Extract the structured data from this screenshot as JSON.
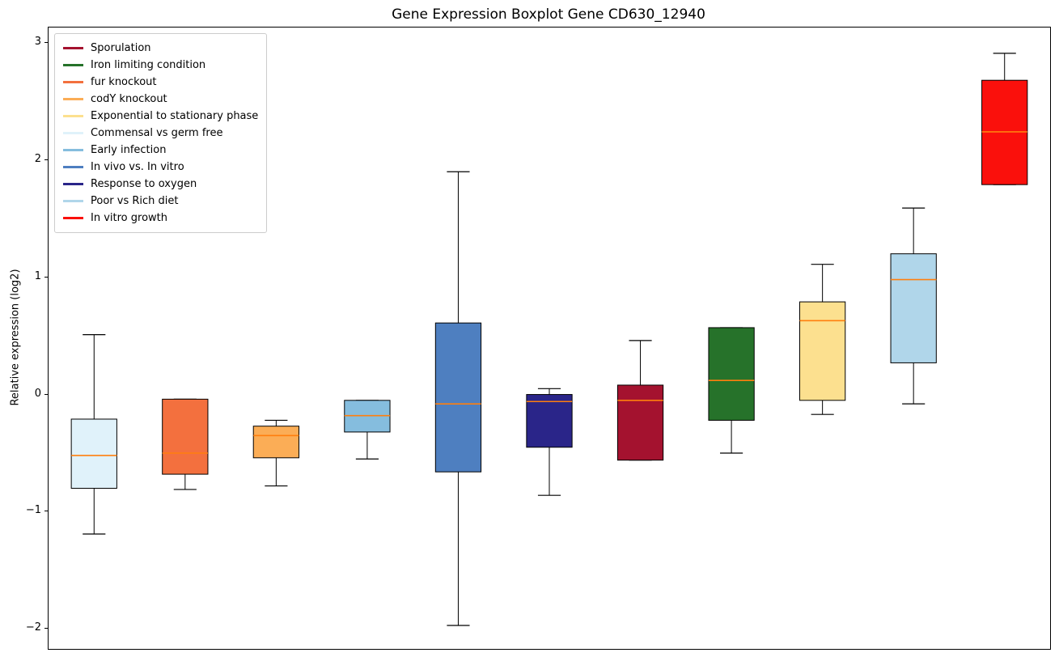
{
  "chart_data": {
    "type": "boxplot",
    "title": "Gene Expression Boxplot Gene CD630_12940",
    "ylabel": "Relative expression (log2)",
    "xlabel": "",
    "ylim": [
      -2.17,
      3.13
    ],
    "yticks": [
      -2,
      -1,
      0,
      1,
      2,
      3
    ],
    "grid": false,
    "legend_position": "upper left",
    "median_color": "#ff7f0e",
    "box_edge_color": "#000000",
    "whisker_color": "#000000",
    "legend": [
      {
        "label": "Sporulation",
        "color": "#a4122f"
      },
      {
        "label": "Iron limiting condition",
        "color": "#26722a"
      },
      {
        "label": "fur knockout",
        "color": "#f3703e"
      },
      {
        "label": "codY knockout",
        "color": "#fbad56"
      },
      {
        "label": "Exponential to stationary phase",
        "color": "#fce08f"
      },
      {
        "label": "Commensal vs germ free",
        "color": "#e0f2fa"
      },
      {
        "label": "Early infection",
        "color": "#85bdde"
      },
      {
        "label": "In vivo vs. In vitro",
        "color": "#4e7fc0"
      },
      {
        "label": "Response to oxygen",
        "color": "#2a2589"
      },
      {
        "label": "Poor vs Rich diet",
        "color": "#b0d6ea"
      },
      {
        "label": "In vitro growth",
        "color": "#fa100c"
      }
    ],
    "boxes": [
      {
        "condition": "Commensal vs germ free",
        "color": "#e0f2fa",
        "whisker_low": -1.19,
        "q1": -0.8,
        "median": -0.52,
        "q3": -0.21,
        "whisker_high": 0.51
      },
      {
        "condition": "fur knockout",
        "color": "#f3703e",
        "whisker_low": -0.81,
        "q1": -0.68,
        "median": -0.5,
        "q3": -0.04,
        "whisker_high": -0.04
      },
      {
        "condition": "codY knockout",
        "color": "#fbad56",
        "whisker_low": -0.78,
        "q1": -0.54,
        "median": -0.35,
        "q3": -0.27,
        "whisker_high": -0.22
      },
      {
        "condition": "Early infection",
        "color": "#85bdde",
        "whisker_low": -0.55,
        "q1": -0.32,
        "median": -0.18,
        "q3": -0.05,
        "whisker_high": -0.05
      },
      {
        "condition": "In vivo vs. In vitro",
        "color": "#4e7fc0",
        "whisker_low": -1.97,
        "q1": -0.66,
        "median": -0.08,
        "q3": 0.61,
        "whisker_high": 1.9
      },
      {
        "condition": "Response to oxygen",
        "color": "#2a2589",
        "whisker_low": -0.86,
        "q1": -0.45,
        "median": -0.06,
        "q3": 0.0,
        "whisker_high": 0.05
      },
      {
        "condition": "Sporulation",
        "color": "#a4122f",
        "whisker_low": -0.56,
        "q1": -0.56,
        "median": -0.05,
        "q3": 0.08,
        "whisker_high": 0.46
      },
      {
        "condition": "Iron limiting condition",
        "color": "#26722a",
        "whisker_low": -0.5,
        "q1": -0.22,
        "median": 0.12,
        "q3": 0.57,
        "whisker_high": 0.57
      },
      {
        "condition": "Exponential to stationary phase",
        "color": "#fce08f",
        "whisker_low": -0.17,
        "q1": -0.05,
        "median": 0.63,
        "q3": 0.79,
        "whisker_high": 1.11
      },
      {
        "condition": "Poor vs Rich diet",
        "color": "#b0d6ea",
        "whisker_low": -0.08,
        "q1": 0.27,
        "median": 0.98,
        "q3": 1.2,
        "whisker_high": 1.59
      },
      {
        "condition": "In vitro growth",
        "color": "#fa100c",
        "whisker_low": 1.79,
        "q1": 1.79,
        "median": 2.24,
        "q3": 2.68,
        "whisker_high": 2.91
      }
    ]
  }
}
